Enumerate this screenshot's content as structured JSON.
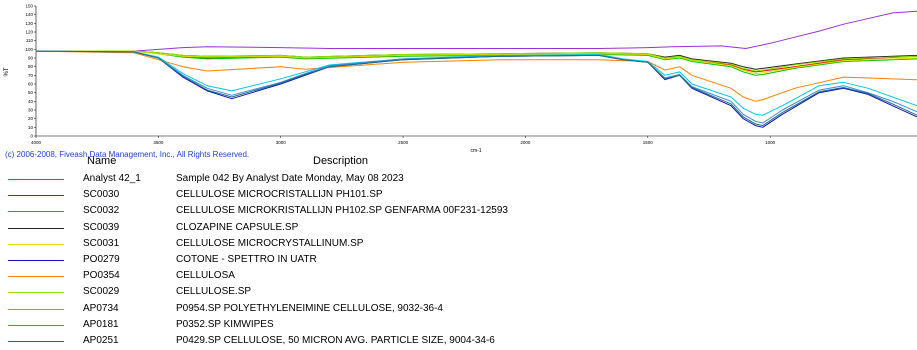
{
  "copyright": "(c) 2006-2008, Fiveash Data Management, Inc., All Rights Reserved.",
  "legend_header": {
    "name": "Name",
    "description": "Description"
  },
  "chart_data": {
    "type": "line",
    "ylabel": "%T",
    "xlabel": "cm-1",
    "xlim": [
      4000,
      400
    ],
    "ylim": [
      0,
      150
    ],
    "x_ticks": [
      "4000",
      "3500",
      "3000",
      "2500",
      "2000",
      "1500",
      "1000"
    ],
    "y_ticks": [
      "150",
      "140",
      "130",
      "120",
      "110",
      "100",
      "90",
      "80",
      "70",
      "60",
      "50",
      "40",
      "30",
      "20",
      "10",
      "0"
    ],
    "grid": false,
    "series": [
      {
        "name": "Analyst 42_1",
        "description": "Sample 042 By Analyst Date Monday, May 08 2023",
        "color": "#9b30d9",
        "x": [
          4000,
          3600,
          3400,
          3300,
          3000,
          2800,
          2500,
          2000,
          1700,
          1500,
          1400,
          1200,
          1100,
          1000,
          900,
          800,
          700,
          500,
          400
        ],
        "y": [
          98,
          98,
          102,
          103,
          102,
          101,
          101,
          101,
          101,
          102,
          103,
          104,
          101,
          107,
          114,
          121,
          129,
          142,
          144
        ]
      },
      {
        "name": "SC0030",
        "description": "CELLULOSE MICROCRISTALLIJN PH101.SP",
        "color": "#e60000",
        "x": [
          4000,
          3600,
          3500,
          3400,
          3300,
          3000,
          2900,
          2500,
          2100,
          1700,
          1500,
          1430,
          1370,
          1320,
          1160,
          1110,
          1060,
          1030,
          900,
          700,
          400
        ],
        "y": [
          98,
          98,
          96,
          92,
          90,
          92,
          90,
          93,
          94,
          95,
          94,
          90,
          91,
          88,
          82,
          77,
          74,
          75,
          80,
          88,
          92
        ]
      },
      {
        "name": "SC0032",
        "description": "CELLULOSE MICROKRISTALLIJN PH102.SP GENFARMA 00F231-12593",
        "color": "#00c000",
        "x": [
          4000,
          3600,
          3500,
          3400,
          3300,
          3000,
          2900,
          2500,
          2100,
          1700,
          1500,
          1430,
          1370,
          1320,
          1160,
          1110,
          1060,
          1030,
          900,
          700,
          400
        ],
        "y": [
          98,
          98,
          95,
          91,
          89,
          91,
          89,
          92,
          93,
          94,
          93,
          88,
          90,
          86,
          80,
          74,
          70,
          71,
          78,
          86,
          89
        ]
      },
      {
        "name": "SC0039",
        "description": "CLOZAPINE CAPSULE.SP",
        "color": "#222222",
        "x": [
          4000,
          3600,
          3500,
          3400,
          3300,
          3000,
          2900,
          2500,
          2100,
          1700,
          1500,
          1430,
          1370,
          1320,
          1160,
          1110,
          1060,
          1030,
          900,
          700,
          400
        ],
        "y": [
          98,
          98,
          96,
          93,
          92,
          93,
          91,
          94,
          95,
          96,
          95,
          91,
          93,
          89,
          84,
          80,
          77,
          78,
          83,
          90,
          93
        ]
      },
      {
        "name": "SC0031",
        "description": "CELLULOSE MICROCRYSTALLINUM.SP",
        "color": "#e0e000",
        "x": [
          4000,
          3600,
          3500,
          3400,
          3300,
          3000,
          2900,
          2500,
          2100,
          1700,
          1500,
          1430,
          1370,
          1320,
          1160,
          1110,
          1060,
          1030,
          900,
          700,
          400
        ],
        "y": [
          98,
          98,
          95,
          92,
          91,
          92,
          90,
          93,
          94,
          95,
          94,
          89,
          91,
          87,
          81,
          76,
          72,
          73,
          79,
          87,
          90
        ]
      },
      {
        "name": "PO0279",
        "description": "COTONE - SPETTRO IN UATR",
        "color": "#1010c0",
        "x": [
          4000,
          3600,
          3500,
          3400,
          3300,
          3200,
          3000,
          2900,
          2800,
          2500,
          2100,
          1700,
          1600,
          1500,
          1430,
          1370,
          1320,
          1160,
          1110,
          1060,
          1030,
          950,
          800,
          700,
          600,
          500,
          400
        ],
        "y": [
          98,
          97,
          90,
          68,
          52,
          43,
          60,
          70,
          80,
          88,
          92,
          93,
          88,
          85,
          65,
          70,
          55,
          35,
          20,
          12,
          10,
          25,
          50,
          55,
          48,
          35,
          22
        ]
      },
      {
        "name": "PO0354",
        "description": "CELLULOSA",
        "color": "#ff8000",
        "x": [
          4000,
          3600,
          3500,
          3400,
          3300,
          3000,
          2900,
          2500,
          2100,
          1700,
          1500,
          1430,
          1370,
          1320,
          1160,
          1110,
          1060,
          1030,
          900,
          700,
          400
        ],
        "y": [
          98,
          96,
          88,
          80,
          75,
          80,
          77,
          85,
          88,
          88,
          86,
          76,
          80,
          70,
          55,
          45,
          40,
          42,
          55,
          68,
          65
        ]
      },
      {
        "name": "SC0029",
        "description": "CELLULOSE.SP",
        "color": "#90e000",
        "x": [
          4000,
          3600,
          3500,
          3400,
          3300,
          3000,
          2900,
          2500,
          2100,
          1700,
          1500,
          1430,
          1370,
          1320,
          1160,
          1110,
          1060,
          1030,
          900,
          700,
          400
        ],
        "y": [
          98,
          98,
          96,
          93,
          92,
          93,
          91,
          94,
          95,
          96,
          95,
          90,
          92,
          88,
          83,
          78,
          75,
          76,
          82,
          89,
          92
        ]
      },
      {
        "name": "AP0734",
        "description": "P0954.SP POLYETHYLENEIMINE CELLULOSE, 9032-36-4",
        "color": "#00c8f0",
        "x": [
          4000,
          3600,
          3500,
          3400,
          3300,
          3200,
          3000,
          2900,
          2800,
          2500,
          2100,
          1700,
          1600,
          1500,
          1430,
          1370,
          1320,
          1160,
          1110,
          1060,
          1030,
          950,
          800,
          700,
          600,
          500,
          400
        ],
        "y": [
          98,
          97,
          91,
          72,
          58,
          52,
          66,
          74,
          82,
          89,
          93,
          94,
          89,
          86,
          70,
          74,
          60,
          45,
          32,
          25,
          24,
          35,
          58,
          62,
          55,
          45,
          35
        ]
      },
      {
        "name": "AP0181",
        "description": "P0352.SP KIMWIPES",
        "color": "#3a8ad8",
        "x": [
          4000,
          3600,
          3500,
          3400,
          3300,
          3200,
          3000,
          2900,
          2800,
          2500,
          2100,
          1700,
          1600,
          1500,
          1430,
          1370,
          1320,
          1160,
          1110,
          1060,
          1030,
          950,
          800,
          700,
          600,
          500,
          400
        ],
        "y": [
          98,
          97,
          90,
          70,
          55,
          47,
          62,
          72,
          81,
          89,
          92,
          93,
          88,
          85,
          67,
          71,
          57,
          40,
          25,
          17,
          15,
          30,
          53,
          58,
          50,
          40,
          28
        ]
      },
      {
        "name": "AP0251",
        "description": "P0429.SP CELLULOSE, 50 MICRON AVG. PARTICLE SIZE, 9004-34-6",
        "color": "#1a7080",
        "x": [
          4000,
          3600,
          3500,
          3400,
          3300,
          3200,
          3000,
          2900,
          2800,
          2500,
          2100,
          1700,
          1600,
          1500,
          1430,
          1370,
          1320,
          1160,
          1110,
          1060,
          1030,
          950,
          800,
          700,
          600,
          500,
          400
        ],
        "y": [
          98,
          97,
          90,
          69,
          53,
          45,
          61,
          71,
          80,
          88,
          92,
          93,
          88,
          85,
          66,
          70,
          56,
          37,
          22,
          14,
          12,
          27,
          51,
          56,
          49,
          37,
          24
        ]
      }
    ]
  }
}
